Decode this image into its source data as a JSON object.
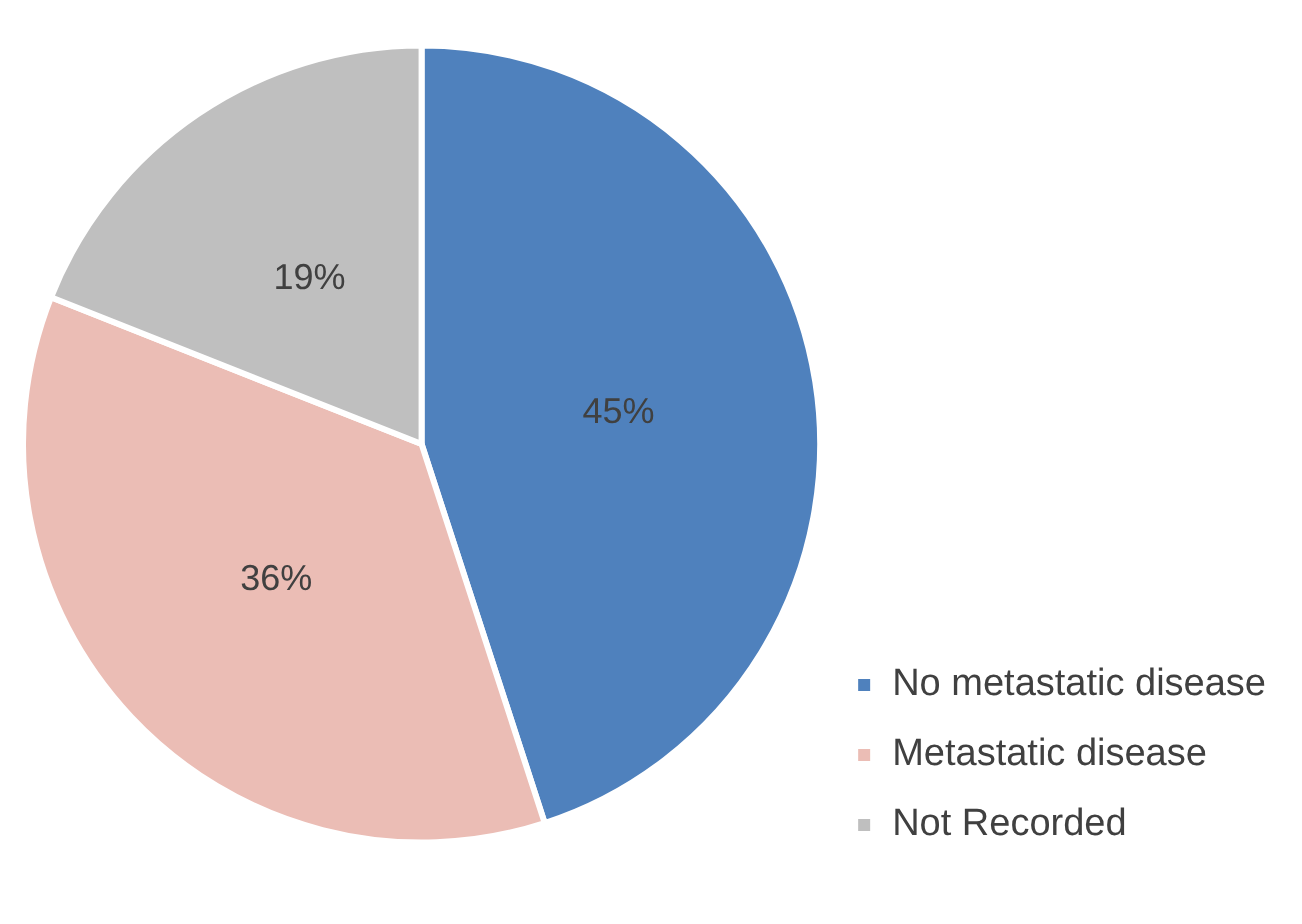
{
  "chart_data": {
    "type": "pie",
    "categories": [
      "No metastatic disease",
      "Metastatic disease",
      "Not Recorded"
    ],
    "values": [
      45,
      36,
      19
    ],
    "colors": [
      "#4f81bd",
      "#ebbdb5",
      "#bfbfbf"
    ],
    "value_labels": [
      "45%",
      "36%",
      "19%"
    ],
    "legend": "bottom right"
  }
}
